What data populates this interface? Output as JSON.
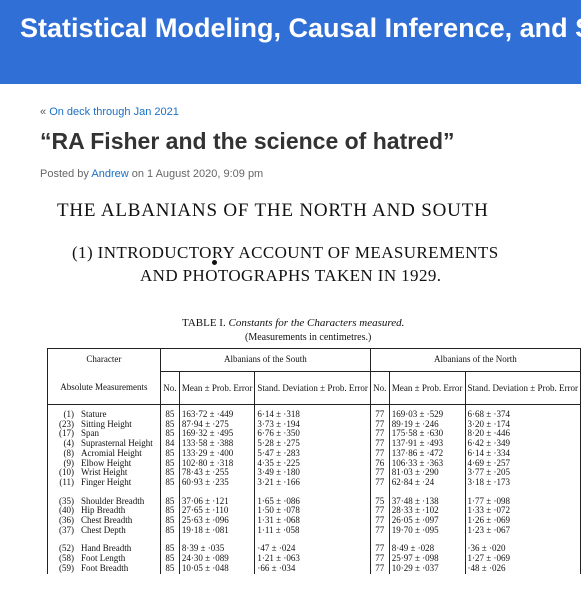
{
  "header": {
    "site_title": "Statistical Modeling, Causal Inference, and Social Science"
  },
  "breadcrumb": {
    "arrow": "«",
    "prev_link": "On deck through Jan 2021"
  },
  "post": {
    "title": "“RA Fisher and the science of hatred”",
    "meta": {
      "posted_by": "Posted by",
      "author": "Andrew",
      "on": "on 1 August 2020, 9:09 pm"
    }
  },
  "scan": {
    "heading": "THE ALBANIANS OF THE NORTH AND SOUTH",
    "subheading_line1": "(1) INTRODUCTORY ACCOUNT OF MEASUREMENTS",
    "subheading_line2": "AND PHOTOGRAPHS TAKEN IN 1929.",
    "table_label": "TABLE I.",
    "table_caption": "Constants for the Characters measured.",
    "table_unit": "(Measurements in centimetres.)",
    "headers": {
      "character_line1": "Character",
      "character_line2": "Absolute Measurements",
      "south_group": "Albanians of the South",
      "north_group": "Albanians of the North",
      "no": "No.",
      "mean_prob_error": "Mean ± Prob. Error",
      "stand_dev": "Stand. Deviation ± Prob. Error"
    },
    "rows": [
      {
        "num": "(1)",
        "name": "Stature",
        "s_no": "85",
        "s_mean": "163·72 ± ·449",
        "s_sd": "6·14 ± ·318",
        "n_no": "77",
        "n_mean": "169·03 ± ·529",
        "n_sd": "6·68 ± ·374"
      },
      {
        "num": "(23)",
        "name": "Sitting Height",
        "s_no": "85",
        "s_mean": "87·94 ± ·275",
        "s_sd": "3·73 ± ·194",
        "n_no": "77",
        "n_mean": "89·19 ± ·246",
        "n_sd": "3·20 ± ·174"
      },
      {
        "num": "(17)",
        "name": "Span",
        "s_no": "85",
        "s_mean": "169·32 ± ·495",
        "s_sd": "6·76 ± ·350",
        "n_no": "77",
        "n_mean": "175·58 ± ·630",
        "n_sd": "8·20 ± ·446"
      },
      {
        "num": "(4)",
        "name": "Suprasternal Height",
        "s_no": "84",
        "s_mean": "133·58 ± ·388",
        "s_sd": "5·28 ± ·275",
        "n_no": "77",
        "n_mean": "137·91 ± ·493",
        "n_sd": "6·42 ± ·349"
      },
      {
        "num": "(8)",
        "name": "Acromial Height",
        "s_no": "85",
        "s_mean": "133·29 ± ·400",
        "s_sd": "5·47 ± ·283",
        "n_no": "77",
        "n_mean": "137·86 ± ·472",
        "n_sd": "6·14 ± ·334"
      },
      {
        "num": "(9)",
        "name": "Elbow Height",
        "s_no": "85",
        "s_mean": "102·80 ± ·318",
        "s_sd": "4·35 ± ·225",
        "n_no": "76",
        "n_mean": "106·33 ± ·363",
        "n_sd": "4·69 ± ·257"
      },
      {
        "num": "(10)",
        "name": "Wrist Height",
        "s_no": "85",
        "s_mean": "78·43 ± ·255",
        "s_sd": "3·49 ± ·180",
        "n_no": "77",
        "n_mean": "81·03 ± ·290",
        "n_sd": "3·77 ± ·205"
      },
      {
        "num": "(11)",
        "name": "Finger Height",
        "s_no": "85",
        "s_mean": "60·93 ± ·235",
        "s_sd": "3·21 ± ·166",
        "n_no": "77",
        "n_mean": "62·84 ± ·24",
        "n_sd": "3·18 ± ·173"
      },
      {
        "num": "(35)",
        "name": "Shoulder Breadth",
        "s_no": "85",
        "s_mean": "37·06 ± ·121",
        "s_sd": "1·65 ± ·086",
        "n_no": "75",
        "n_mean": "37·48 ± ·138",
        "n_sd": "1·77 ± ·098"
      },
      {
        "num": "(40)",
        "name": "Hip Breadth",
        "s_no": "85",
        "s_mean": "27·65 ± ·110",
        "s_sd": "1·50 ± ·078",
        "n_no": "77",
        "n_mean": "28·33 ± ·102",
        "n_sd": "1·33 ± ·072"
      },
      {
        "num": "(36)",
        "name": "Chest Breadth",
        "s_no": "85",
        "s_mean": "25·63 ± ·096",
        "s_sd": "1·31 ± ·068",
        "n_no": "77",
        "n_mean": "26·05 ± ·097",
        "n_sd": "1·26 ± ·069"
      },
      {
        "num": "(37)",
        "name": "Chest Depth",
        "s_no": "85",
        "s_mean": "19·18 ± ·081",
        "s_sd": "1·11 ± ·058",
        "n_no": "77",
        "n_mean": "19·70 ± ·095",
        "n_sd": "1·23 ± ·067"
      },
      {
        "num": "(52)",
        "name": "Hand Breadth",
        "s_no": "85",
        "s_mean": "8·39 ± ·035",
        "s_sd": "·47 ± ·024",
        "n_no": "77",
        "n_mean": "8·49 ± ·028",
        "n_sd": "·36 ± ·020"
      },
      {
        "num": "(58)",
        "name": "Foot Length",
        "s_no": "85",
        "s_mean": "24·30 ± ·089",
        "s_sd": "1·21 ± ·063",
        "n_no": "77",
        "n_mean": "25·97 ± ·098",
        "n_sd": "1·27 ± ·069"
      },
      {
        "num": "(59)",
        "name": "Foot Breadth",
        "s_no": "85",
        "s_mean": "10·05 ± ·048",
        "s_sd": "·66 ± ·034",
        "n_no": "77",
        "n_mean": "10·29 ± ·037",
        "n_sd": "·48 ± ·026"
      }
    ]
  }
}
